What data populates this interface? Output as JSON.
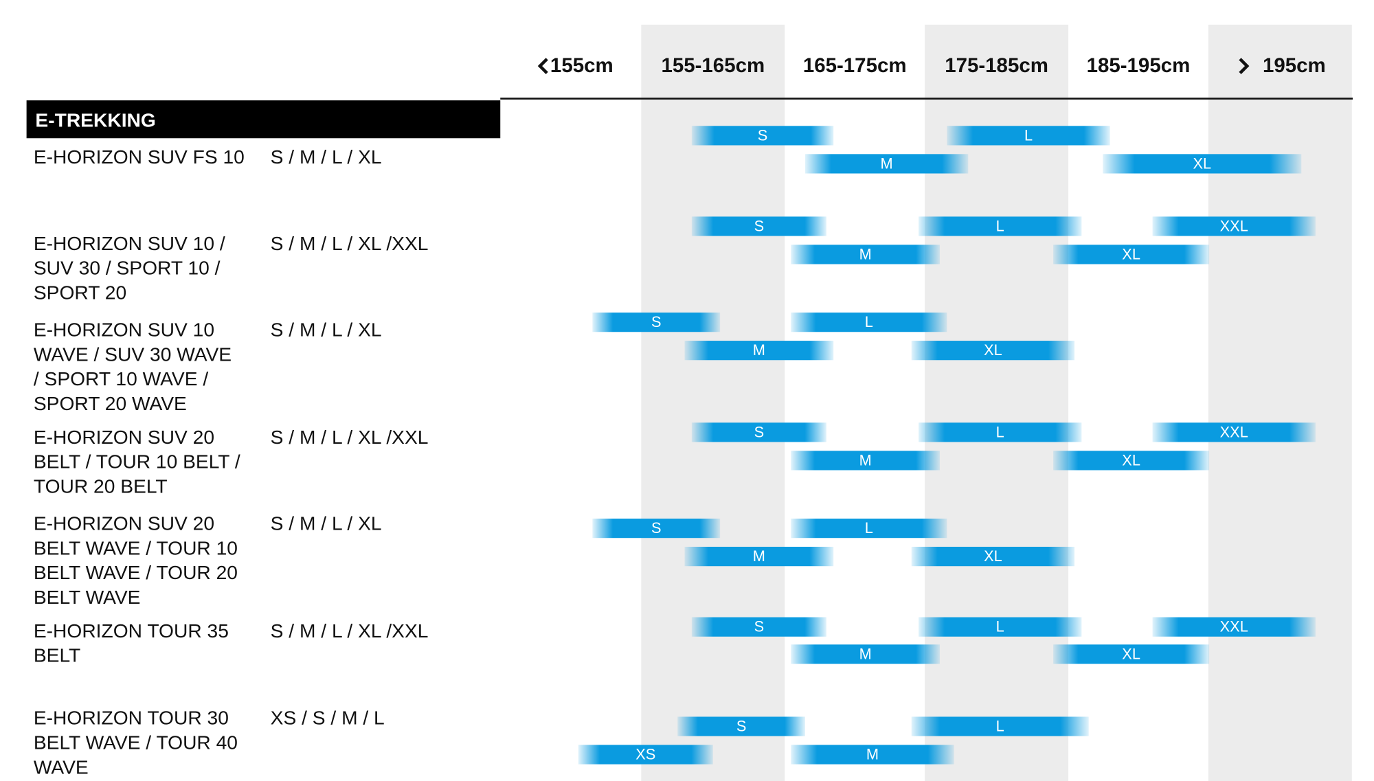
{
  "header": {
    "columns": [
      {
        "from": null,
        "to": 155,
        "label": "155cm"
      },
      {
        "from": 155,
        "to": 165,
        "label": "155-165cm"
      },
      {
        "from": 165,
        "to": 175,
        "label": "165-175cm"
      },
      {
        "from": 175,
        "to": 185,
        "label": "175-185cm"
      },
      {
        "from": 185,
        "to": 195,
        "label": "185-195cm"
      },
      {
        "from": 195,
        "to": null,
        "label": "195cm"
      }
    ]
  },
  "section": {
    "title": "E-TREKKING",
    "rows": [
      {
        "name": [
          "E-HORIZON SUV FS 10"
        ],
        "sizes": "S / M / L / XL",
        "top_bars": [
          {
            "label": "S",
            "from": 158.5,
            "to": 168.5
          },
          {
            "label": "L",
            "from": 176.5,
            "to": 188
          }
        ],
        "bottom_bars": [
          {
            "label": "M",
            "from": 166.5,
            "to": 178
          },
          {
            "label": "XL",
            "from": 187.5,
            "to": 201.5
          }
        ]
      },
      {
        "name": [
          "E-HORIZON SUV 10 /",
          "SUV 30 / SPORT 10 /",
          "SPORT 20"
        ],
        "sizes": "S / M / L / XL /XXL",
        "top_bars": [
          {
            "label": "S",
            "from": 158.5,
            "to": 168
          },
          {
            "label": "L",
            "from": 174.5,
            "to": 186
          },
          {
            "label": "XXL",
            "from": 191,
            "to": 202.5
          }
        ],
        "bottom_bars": [
          {
            "label": "M",
            "from": 165.5,
            "to": 176
          },
          {
            "label": "XL",
            "from": 184,
            "to": 195
          }
        ]
      },
      {
        "name": [
          "E-HORIZON SUV 10",
          "WAVE / SUV 30 WAVE",
          "/ SPORT 10 WAVE /",
          "SPORT 20 WAVE"
        ],
        "sizes": "S / M / L / XL",
        "top_bars": [
          {
            "label": "S",
            "from": 151.5,
            "to": 160.5
          },
          {
            "label": "L",
            "from": 165.5,
            "to": 176.5
          }
        ],
        "bottom_bars": [
          {
            "label": "M",
            "from": 158,
            "to": 168.5
          },
          {
            "label": "XL",
            "from": 174,
            "to": 185.5
          }
        ]
      },
      {
        "name": [
          "E-HORIZON SUV 20",
          "BELT / TOUR 10 BELT /",
          "TOUR 20 BELT"
        ],
        "sizes": "S / M / L / XL /XXL",
        "top_bars": [
          {
            "label": "S",
            "from": 158.5,
            "to": 168
          },
          {
            "label": "L",
            "from": 174.5,
            "to": 186
          },
          {
            "label": "XXL",
            "from": 191,
            "to": 202.5
          }
        ],
        "bottom_bars": [
          {
            "label": "M",
            "from": 165.5,
            "to": 176
          },
          {
            "label": "XL",
            "from": 184,
            "to": 195
          }
        ]
      },
      {
        "name": [
          "E-HORIZON SUV 20",
          "BELT WAVE / TOUR 10",
          "BELT WAVE / TOUR 20",
          "BELT WAVE"
        ],
        "sizes": "S / M / L / XL",
        "top_bars": [
          {
            "label": "S",
            "from": 151.5,
            "to": 160.5
          },
          {
            "label": "L",
            "from": 165.5,
            "to": 176.5
          }
        ],
        "bottom_bars": [
          {
            "label": "M",
            "from": 158,
            "to": 168.5
          },
          {
            "label": "XL",
            "from": 174,
            "to": 185.5
          }
        ]
      },
      {
        "name": [
          "E-HORIZON TOUR 35",
          "BELT"
        ],
        "sizes": "S / M / L / XL /XXL",
        "top_bars": [
          {
            "label": "S",
            "from": 158.5,
            "to": 168
          },
          {
            "label": "L",
            "from": 174.5,
            "to": 186
          },
          {
            "label": "XXL",
            "from": 191,
            "to": 202.5
          }
        ],
        "bottom_bars": [
          {
            "label": "M",
            "from": 165.5,
            "to": 176
          },
          {
            "label": "XL",
            "from": 184,
            "to": 195
          }
        ]
      },
      {
        "name": [
          "E-HORIZON TOUR 30",
          "BELT WAVE / TOUR 40",
          "WAVE"
        ],
        "sizes": "XS / S / M / L",
        "top_bars": [
          {
            "label": "S",
            "from": 157.5,
            "to": 166.5
          },
          {
            "label": "L",
            "from": 174,
            "to": 186.5
          }
        ],
        "bottom_bars": [
          {
            "label": "XS",
            "from": 150.5,
            "to": 160
          },
          {
            "label": "M",
            "from": 165.5,
            "to": 177
          }
        ]
      }
    ]
  }
}
